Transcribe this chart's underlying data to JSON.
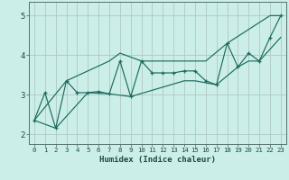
{
  "xlabel": "Humidex (Indice chaleur)",
  "bg_color": "#cceee8",
  "line_color": "#1a6b5e",
  "grid_color": "#b0c8c4",
  "xlim": [
    -0.5,
    23.5
  ],
  "ylim": [
    1.75,
    5.35
  ],
  "xticks": [
    0,
    1,
    2,
    3,
    4,
    5,
    6,
    7,
    8,
    9,
    10,
    11,
    12,
    13,
    14,
    15,
    16,
    17,
    18,
    19,
    20,
    21,
    22,
    23
  ],
  "yticks": [
    2,
    3,
    4,
    5
  ],
  "main_x": [
    0,
    1,
    2,
    3,
    4,
    5,
    6,
    7,
    8,
    9,
    10,
    11,
    12,
    13,
    14,
    15,
    16,
    17,
    18,
    19,
    20,
    21,
    22,
    23
  ],
  "main_y": [
    2.35,
    3.05,
    2.15,
    3.35,
    3.05,
    3.05,
    3.08,
    3.02,
    3.85,
    2.95,
    3.85,
    3.55,
    3.55,
    3.55,
    3.6,
    3.6,
    3.35,
    3.25,
    4.3,
    3.7,
    4.05,
    3.85,
    4.45,
    5.0
  ],
  "upper_x": [
    0,
    3,
    7,
    8,
    10,
    12,
    14,
    16,
    18,
    22,
    23
  ],
  "upper_y": [
    2.35,
    3.35,
    3.85,
    4.05,
    3.85,
    3.85,
    3.85,
    3.85,
    4.3,
    5.0,
    5.0
  ],
  "lower_x": [
    0,
    2,
    5,
    7,
    9,
    14,
    15,
    17,
    19,
    20,
    21,
    23
  ],
  "lower_y": [
    2.35,
    2.15,
    3.05,
    3.02,
    2.95,
    3.35,
    3.35,
    3.25,
    3.7,
    3.85,
    3.85,
    4.45
  ]
}
